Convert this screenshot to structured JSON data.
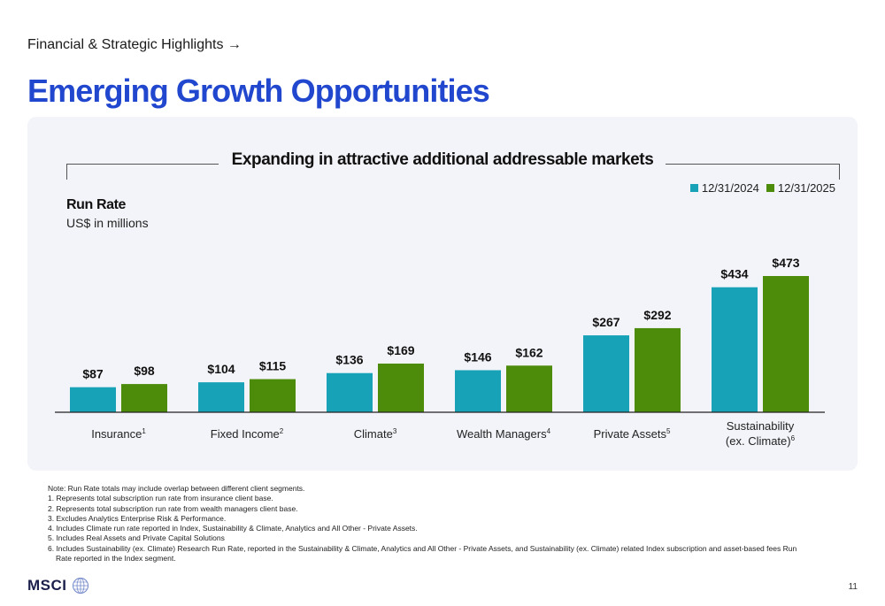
{
  "header": {
    "breadcrumb": "Financial & Strategic Highlights →",
    "title": "Emerging Growth Opportunities"
  },
  "chart_data": {
    "type": "bar",
    "title": "Expanding in attractive additional addressable markets",
    "ylabel": "Run Rate",
    "yunits": "US$ in millions",
    "ylim": [
      0,
      500
    ],
    "legend_position": "top-right",
    "categories": [
      {
        "label": "Insurance",
        "footnote": "1"
      },
      {
        "label": "Fixed Income",
        "footnote": "2"
      },
      {
        "label": "Climate",
        "footnote": "3"
      },
      {
        "label": "Wealth Managers",
        "footnote": "4"
      },
      {
        "label": "Private Assets",
        "footnote": "5"
      },
      {
        "label": "Sustainability",
        "label2": "(ex. Climate)",
        "footnote": "6"
      }
    ],
    "series": [
      {
        "name": "12/31/2024",
        "color": "#17a2b8",
        "values": [
          87,
          104,
          136,
          146,
          267,
          434
        ]
      },
      {
        "name": "12/31/2025",
        "color": "#4c8c0a",
        "values": [
          98,
          115,
          169,
          162,
          292,
          473
        ]
      }
    ],
    "value_prefix": "$"
  },
  "notes": [
    "Note: Run Rate totals may include overlap between different client segments.",
    "1. Represents total subscription run rate from insurance client base.",
    "2. Represents total subscription run rate from wealth managers client base.",
    "3. Excludes Analytics Enterprise Risk & Performance.",
    "4. Includes Climate run rate reported in Index, Sustainability & Climate, Analytics and All Other - Private Assets.",
    "5. Includes Real Assets and Private Capital Solutions",
    "6. Includes Sustainability (ex. Climate) Research Run Rate, reported in the Sustainability & Climate, Analytics and All Other - Private Assets, and Sustainability (ex. Climate) related Index subscription and asset-based fees Run",
    "Rate reported in the Index segment."
  ],
  "footer": {
    "logo": "MSCI",
    "page_number": "11"
  }
}
